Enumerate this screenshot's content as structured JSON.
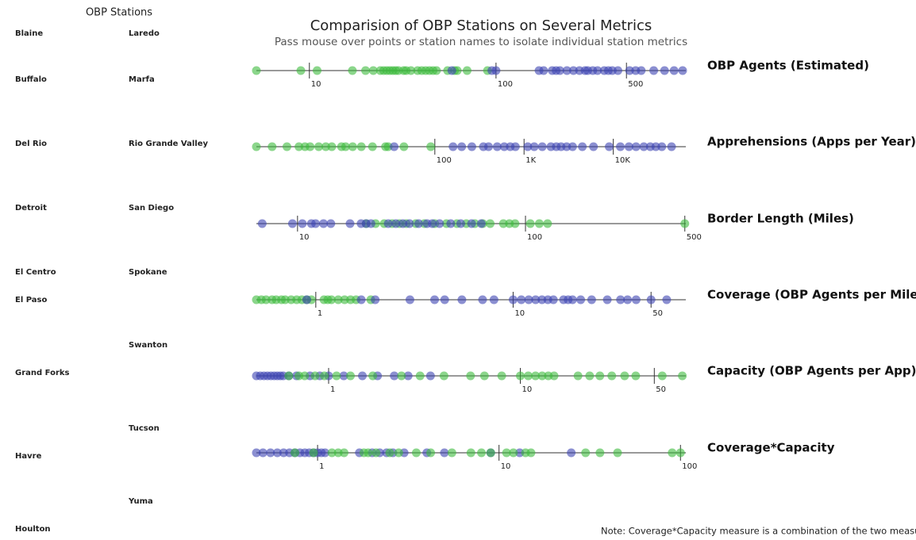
{
  "header": {
    "title": "Comparision of OBP Stations on Several Metrics",
    "subtitle": "Pass mouse over points or station names to isolate individual station metrics"
  },
  "stations": {
    "title": "OBP Stations",
    "column1": [
      "Blaine",
      "Buffalo",
      "Del Rio",
      "Detroit",
      "El Centro",
      "El Paso",
      "Grand Forks",
      "Havre",
      "Houlton"
    ],
    "column2": [
      "Laredo",
      "Marfa",
      "Rio Grande Valley",
      "San Diego",
      "Spokane",
      "Swanton",
      "Tucson",
      "Yuma"
    ]
  },
  "note": "Note: Coverage*Capacity measure is a combination of the two measures",
  "chart_data": [
    {
      "type": "strip",
      "title": "OBP Agents (Estimated)",
      "xscale": "log",
      "xlim": [
        5.2,
        1040
      ],
      "xticks": [
        10,
        100,
        500
      ],
      "series": [
        {
          "color": "#3dbb3d",
          "values": [
            5.2,
            9,
            11,
            17,
            20,
            22,
            24,
            25,
            26,
            27,
            28,
            29,
            30,
            32,
            33,
            35,
            38,
            40,
            42,
            44,
            46,
            48,
            55,
            60,
            62,
            70,
            90
          ]
        },
        {
          "color": "#3d44b2",
          "values": [
            58,
            95,
            100,
            170,
            180,
            200,
            210,
            220,
            240,
            260,
            280,
            300,
            310,
            330,
            350,
            380,
            400,
            420,
            450,
            520,
            560,
            600,
            700,
            800,
            900,
            1000
          ]
        }
      ]
    },
    {
      "type": "strip",
      "title": "Apprehensions (Apps per Year)",
      "xscale": "log",
      "xlim": [
        1,
        65000
      ],
      "xticks": [
        100,
        {
          "value": 1000,
          "label": "1K"
        },
        {
          "value": 10000,
          "label": "10K"
        }
      ],
      "series": [
        {
          "color": "#3dbb3d",
          "values": [
            1,
            1.5,
            2.2,
            3,
            3.5,
            4,
            5,
            6,
            7,
            9,
            10,
            12,
            15,
            20,
            28,
            30,
            45,
            90
          ]
        },
        {
          "color": "#3d44b2",
          "values": [
            35,
            160,
            200,
            260,
            350,
            400,
            500,
            600,
            700,
            800,
            1100,
            1300,
            1600,
            2000,
            2300,
            2600,
            3000,
            3500,
            4500,
            6000,
            9000,
            12000,
            15000,
            18000,
            22000,
            26000,
            30000,
            35000,
            45000
          ]
        }
      ]
    },
    {
      "type": "strip",
      "title": "Border Length (Miles)",
      "xscale": "log",
      "xlim": [
        6.6,
        505
      ],
      "xticks": [
        10,
        100,
        500
      ],
      "series": [
        {
          "color": "#3dbb3d",
          "values": [
            20,
            22,
            24,
            26,
            28,
            30,
            33,
            36,
            40,
            45,
            50,
            55,
            60,
            65,
            70,
            80,
            85,
            90,
            105,
            115,
            125,
            500
          ]
        },
        {
          "color": "#3d44b2",
          "values": [
            7,
            9.5,
            10.5,
            11.5,
            12,
            13,
            14,
            17,
            19,
            20,
            21,
            25,
            27,
            29,
            31,
            34,
            37,
            39,
            42,
            47,
            52,
            58,
            64
          ]
        }
      ]
    },
    {
      "type": "strip",
      "title": "Coverage (OBP Agents per Mile)",
      "xscale": "log",
      "xlim": [
        0.5,
        75
      ],
      "xticks": [
        1,
        10,
        50
      ],
      "series": [
        {
          "color": "#3dbb3d",
          "values": [
            0.5,
            0.53,
            0.56,
            0.6,
            0.63,
            0.67,
            0.7,
            0.75,
            0.8,
            0.85,
            0.9,
            0.95,
            1.1,
            1.15,
            1.2,
            1.3,
            1.4,
            1.5,
            1.6,
            1.9
          ]
        },
        {
          "color": "#3d44b2",
          "values": [
            0.9,
            1.7,
            2,
            3,
            4,
            4.5,
            5.5,
            7,
            8,
            10,
            11,
            12,
            13,
            14,
            15,
            16,
            18,
            19,
            20,
            22,
            25,
            30,
            35,
            38,
            42,
            50,
            60
          ]
        }
      ]
    },
    {
      "type": "strip",
      "title": "Capacity (OBP Agents per App)",
      "xscale": "log",
      "xlim": [
        0.42,
        73
      ],
      "xticks": [
        1,
        10,
        50
      ],
      "series": [
        {
          "color": "#3d44b2",
          "values": [
            0.42,
            0.44,
            0.46,
            0.48,
            0.5,
            0.52,
            0.54,
            0.56,
            0.58,
            0.62,
            0.68,
            0.8,
            0.9,
            1.0,
            1.2,
            1.5,
            1.8,
            2.2,
            2.6,
            3.4
          ]
        },
        {
          "color": "#3dbb3d",
          "values": [
            0.62,
            0.7,
            0.75,
            0.85,
            0.95,
            1.1,
            1.3,
            1.7,
            2.4,
            3.0,
            4.0,
            5.5,
            6.5,
            8,
            10,
            11,
            12,
            13,
            14,
            15,
            20,
            23,
            26,
            30,
            35,
            40,
            55,
            70
          ]
        }
      ]
    },
    {
      "type": "strip",
      "title": "Coverage*Capacity",
      "xscale": "log",
      "xlim": [
        0.46,
        107
      ],
      "xticks": [
        1,
        10,
        100
      ],
      "series": [
        {
          "color": "#3d44b2",
          "values": [
            0.46,
            0.5,
            0.55,
            0.6,
            0.65,
            0.7,
            0.75,
            0.8,
            0.85,
            0.9,
            0.95,
            1.0,
            1.05,
            1.1,
            1.7,
            2.0,
            2.2,
            2.4,
            2.6,
            3.0,
            4.0,
            5,
            9,
            13,
            25
          ]
        },
        {
          "color": "#3dbb3d",
          "values": [
            0.75,
            0.95,
            1.2,
            1.3,
            1.4,
            1.8,
            1.9,
            2.1,
            2.5,
            2.8,
            3.5,
            4.2,
            5.5,
            7,
            8,
            9,
            11,
            12,
            14,
            15,
            30,
            36,
            45,
            90,
            100
          ]
        }
      ]
    }
  ]
}
